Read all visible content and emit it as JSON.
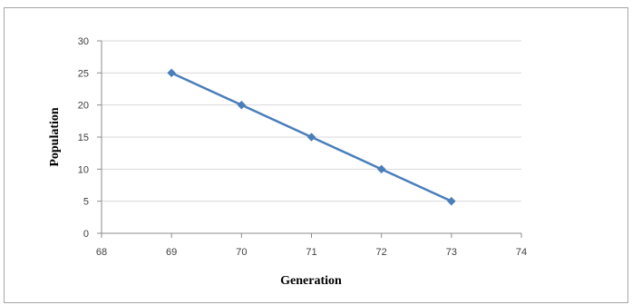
{
  "chart_data": {
    "type": "line",
    "title": "",
    "xlabel": "Generation",
    "ylabel": "Population",
    "xlim": [
      68,
      74
    ],
    "ylim": [
      0,
      30
    ],
    "xticks": [
      68,
      69,
      70,
      71,
      72,
      73,
      74
    ],
    "yticks": [
      0,
      5,
      10,
      15,
      20,
      25,
      30
    ],
    "grid": "horizontal",
    "legend": "none",
    "series": [
      {
        "color": "#4a7ebb",
        "marker": "diamond",
        "x": [
          69,
          70,
          71,
          72,
          73
        ],
        "y": [
          25,
          20,
          15,
          10,
          5
        ]
      }
    ]
  }
}
